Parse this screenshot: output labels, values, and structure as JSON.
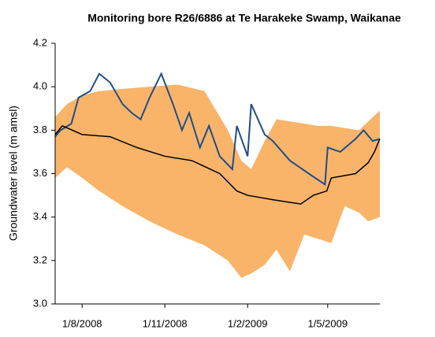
{
  "chart_data": {
    "type": "line",
    "title": "Monitoring bore R26/6886 at Te Harakeke Swamp, Waikanae",
    "y_label": "Groundwater level (m amsl)",
    "xlim": [
      "2008-07-02",
      "2009-06-28"
    ],
    "xticks": [
      {
        "value": "2008-08-01",
        "label": "1/8/2008"
      },
      {
        "value": "2008-11-01",
        "label": "1/11/2008"
      },
      {
        "value": "2009-02-01",
        "label": "1/2/2009"
      },
      {
        "value": "2009-05-01",
        "label": "1/5/2009"
      }
    ],
    "ylim": [
      3.0,
      4.2
    ],
    "yticks": [
      {
        "value": 3,
        "label": "3.0"
      },
      3.2,
      3.4,
      3.6,
      3.8,
      {
        "value": 4,
        "label": "4.0"
      },
      4.2
    ],
    "band": {
      "color": "#f9b46a",
      "x": [
        "2008-07-02",
        "2008-07-15",
        "2008-08-01",
        "2008-08-20",
        "2008-09-15",
        "2008-10-15",
        "2008-11-15",
        "2008-12-15",
        "2009-01-10",
        "2009-01-25",
        "2009-02-05",
        "2009-02-20",
        "2009-03-05",
        "2009-03-20",
        "2009-04-05",
        "2009-04-20",
        "2009-05-05",
        "2009-05-20",
        "2009-06-05",
        "2009-06-15",
        "2009-06-28"
      ],
      "upper": [
        3.86,
        3.92,
        3.96,
        3.98,
        3.99,
        4.0,
        4.01,
        3.98,
        3.8,
        3.66,
        3.62,
        3.75,
        3.85,
        3.84,
        3.83,
        3.82,
        3.82,
        3.81,
        3.8,
        3.84,
        3.89
      ],
      "lower": [
        3.58,
        3.63,
        3.58,
        3.52,
        3.45,
        3.38,
        3.32,
        3.27,
        3.2,
        3.12,
        3.14,
        3.18,
        3.25,
        3.15,
        3.32,
        3.3,
        3.28,
        3.45,
        3.42,
        3.38,
        3.4
      ]
    },
    "series": [
      {
        "color": "#1f4e87",
        "x": [
          "2008-07-02",
          "2008-07-08",
          "2008-07-20",
          "2008-07-28",
          "2008-08-10",
          "2008-08-20",
          "2008-09-01",
          "2008-09-15",
          "2008-09-25",
          "2008-10-05",
          "2008-10-15",
          "2008-10-28",
          "2008-11-10",
          "2008-11-20",
          "2008-11-28",
          "2008-12-10",
          "2008-12-20",
          "2009-01-01",
          "2009-01-15",
          "2009-01-20",
          "2009-02-01",
          "2009-02-05",
          "2009-02-20",
          "2009-03-01",
          "2009-03-20",
          "2009-04-10",
          "2009-04-28",
          "2009-05-01",
          "2009-05-15",
          "2009-06-01",
          "2009-06-10",
          "2009-06-20",
          "2009-06-28"
        ],
        "values": [
          3.77,
          3.8,
          3.83,
          3.95,
          3.98,
          4.06,
          4.02,
          3.92,
          3.88,
          3.85,
          3.95,
          4.06,
          3.92,
          3.8,
          3.88,
          3.72,
          3.82,
          3.68,
          3.62,
          3.82,
          3.68,
          3.92,
          3.78,
          3.75,
          3.66,
          3.6,
          3.55,
          3.72,
          3.7,
          3.76,
          3.8,
          3.75,
          3.76
        ]
      },
      {
        "color": "#000000",
        "x": [
          "2008-07-02",
          "2008-07-10",
          "2008-08-01",
          "2008-09-01",
          "2008-10-01",
          "2008-11-01",
          "2008-12-01",
          "2009-01-01",
          "2009-01-20",
          "2009-02-01",
          "2009-03-01",
          "2009-04-01",
          "2009-04-15",
          "2009-04-30",
          "2009-05-05",
          "2009-06-01",
          "2009-06-15",
          "2009-06-22",
          "2009-06-28"
        ],
        "values": [
          3.78,
          3.82,
          3.78,
          3.77,
          3.72,
          3.68,
          3.66,
          3.6,
          3.52,
          3.5,
          3.48,
          3.46,
          3.5,
          3.52,
          3.58,
          3.6,
          3.65,
          3.7,
          3.76
        ]
      }
    ]
  }
}
